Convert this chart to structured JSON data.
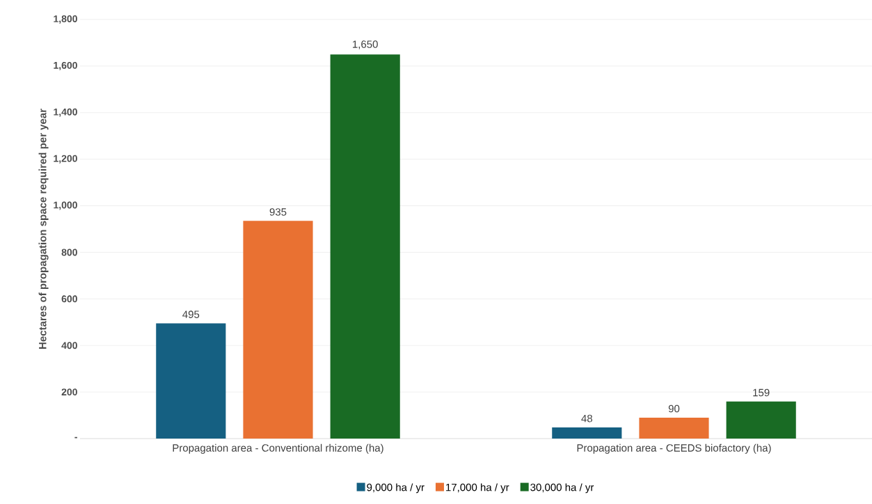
{
  "chart_data": {
    "type": "bar",
    "ylabel": "Hectares of propagation space required per year",
    "categories": [
      "Propagation area - Conventional rhizome (ha)",
      "Propagation area - CEEDS biofactory (ha)"
    ],
    "series": [
      {
        "name": "9,000 ha / yr",
        "color": "#156082",
        "values": [
          495,
          48
        ],
        "value_labels": [
          "495",
          "48"
        ]
      },
      {
        "name": "17,000 ha / yr",
        "color": "#e97132",
        "values": [
          935,
          90
        ],
        "value_labels": [
          "935",
          "90"
        ]
      },
      {
        "name": "30,000 ha / yr",
        "color": "#196b24",
        "values": [
          1650,
          159
        ],
        "value_labels": [
          "1,650",
          "159"
        ]
      }
    ],
    "ylim": [
      0,
      1800
    ],
    "yticks": [
      {
        "value": 0,
        "label": "-"
      },
      200,
      400,
      600,
      800,
      {
        "value": 1000,
        "label": "1,000"
      },
      {
        "value": 1200,
        "label": "1,200"
      },
      {
        "value": 1400,
        "label": "1,400"
      },
      {
        "value": 1600,
        "label": "1,600"
      },
      {
        "value": 1800,
        "label": "1,800"
      }
    ],
    "grid": "y",
    "legend": "bottom"
  }
}
